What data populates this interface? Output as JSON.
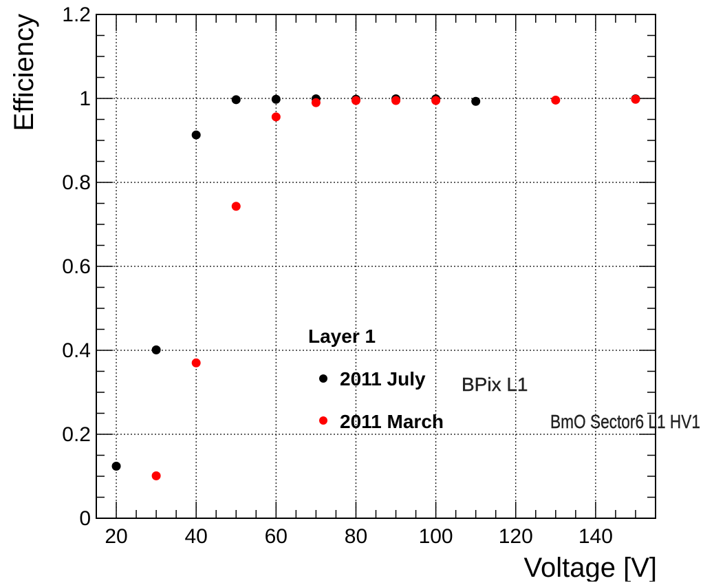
{
  "chart_data": {
    "type": "scatter",
    "xlabel": "Voltage [V]",
    "ylabel": "Efficiency",
    "xlim": [
      15,
      155
    ],
    "ylim": [
      0,
      1.2
    ],
    "x_ticks": [
      20,
      40,
      60,
      80,
      100,
      120,
      140
    ],
    "y_ticks": [
      0,
      0.2,
      0.4,
      0.6,
      0.8,
      1,
      1.2
    ],
    "x_tick_labels": [
      "20",
      "40",
      "60",
      "80",
      "100",
      "120",
      "140"
    ],
    "y_tick_labels": [
      "0",
      "0.2",
      "0.4",
      "0.6",
      "0.8",
      "1",
      "1.2"
    ],
    "grid": true,
    "legend_position": "lower-middle",
    "legend_header": "Layer 1",
    "series": [
      {
        "name": "2011 July",
        "annotation": "BPix L1",
        "color": "#000000",
        "x": [
          20,
          30,
          40,
          50,
          60,
          70,
          80,
          90,
          100,
          110,
          150
        ],
        "y": [
          0.124,
          0.401,
          0.913,
          0.997,
          0.998,
          0.999,
          0.998,
          0.999,
          0.999,
          0.993,
          0.999
        ]
      },
      {
        "name": "2011 March",
        "annotation": "BmO Sector6 L1 HV1",
        "color": "#ff0000",
        "x": [
          30,
          40,
          50,
          60,
          70,
          80,
          90,
          100,
          130,
          150
        ],
        "y": [
          0.101,
          0.37,
          0.743,
          0.956,
          0.99,
          0.995,
          0.995,
          0.995,
          0.996,
          0.998
        ]
      }
    ]
  }
}
